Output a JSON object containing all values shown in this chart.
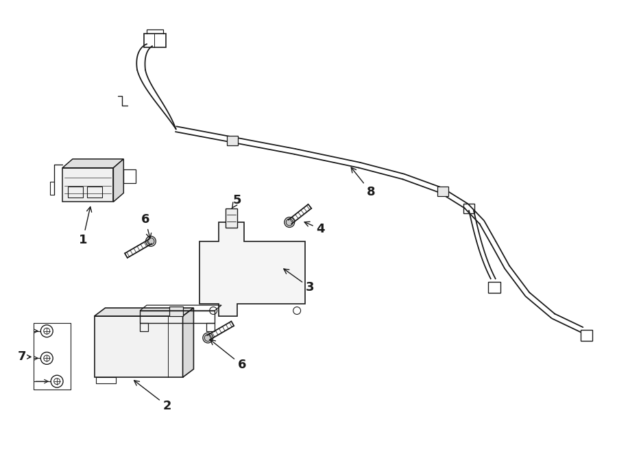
{
  "bg_color": "#ffffff",
  "line_color": "#1a1a1a",
  "lw": 1.3,
  "fig_width": 9.0,
  "fig_height": 6.62,
  "dpi": 100
}
